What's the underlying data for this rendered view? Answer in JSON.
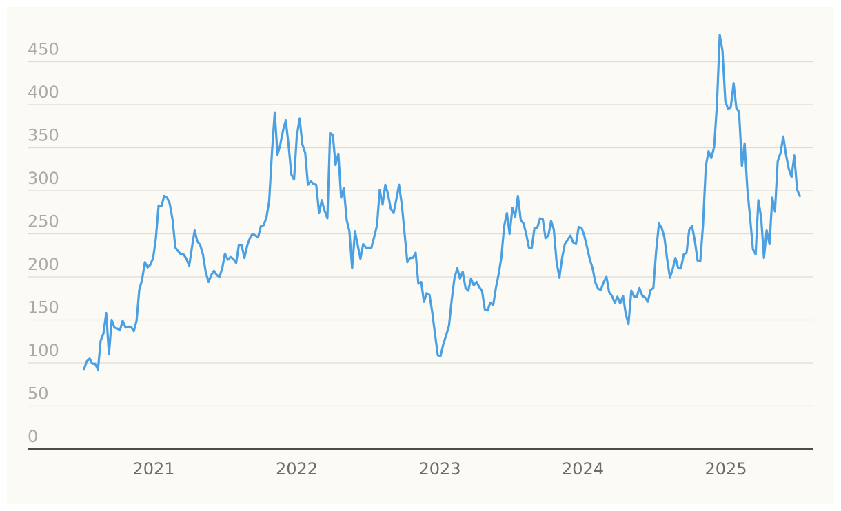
{
  "chart_data": {
    "type": "line",
    "x": [
      2020.513,
      2020.532,
      2020.552,
      2020.571,
      2020.59,
      2020.61,
      2020.629,
      2020.648,
      2020.668,
      2020.687,
      2020.706,
      2020.725,
      2020.745,
      2020.764,
      2020.783,
      2020.803,
      2020.822,
      2020.841,
      2020.861,
      2020.88,
      2020.899,
      2020.918,
      2020.938,
      2020.957,
      2020.976,
      2020.996,
      2021.015,
      2021.034,
      2021.054,
      2021.073,
      2021.093,
      2021.112,
      2021.132,
      2021.151,
      2021.17,
      2021.19,
      2021.209,
      2021.228,
      2021.248,
      2021.267,
      2021.286,
      2021.305,
      2021.325,
      2021.344,
      2021.363,
      2021.383,
      2021.402,
      2021.421,
      2021.441,
      2021.46,
      2021.479,
      2021.498,
      2021.518,
      2021.537,
      2021.556,
      2021.576,
      2021.595,
      2021.614,
      2021.634,
      2021.653,
      2021.672,
      2021.691,
      2021.711,
      2021.73,
      2021.749,
      2021.769,
      2021.788,
      2021.807,
      2021.827,
      2021.846,
      2021.865,
      2021.884,
      2021.904,
      2021.923,
      2021.942,
      2021.962,
      2021.981,
      2022.0,
      2022.02,
      2022.039,
      2022.059,
      2022.078,
      2022.098,
      2022.117,
      2022.136,
      2022.156,
      2022.175,
      2022.194,
      2022.214,
      2022.233,
      2022.252,
      2022.271,
      2022.291,
      2022.31,
      2022.329,
      2022.349,
      2022.368,
      2022.387,
      2022.407,
      2022.426,
      2022.445,
      2022.464,
      2022.484,
      2022.503,
      2022.522,
      2022.542,
      2022.561,
      2022.58,
      2022.6,
      2022.619,
      2022.638,
      2022.657,
      2022.677,
      2022.696,
      2022.715,
      2022.735,
      2022.754,
      2022.773,
      2022.793,
      2022.812,
      2022.831,
      2022.85,
      2022.87,
      2022.889,
      2022.908,
      2022.928,
      2022.947,
      2022.966,
      2022.986,
      2023.005,
      2023.025,
      2023.044,
      2023.064,
      2023.083,
      2023.102,
      2023.122,
      2023.141,
      2023.16,
      2023.18,
      2023.199,
      2023.218,
      2023.237,
      2023.257,
      2023.276,
      2023.295,
      2023.315,
      2023.334,
      2023.353,
      2023.373,
      2023.392,
      2023.411,
      2023.43,
      2023.45,
      2023.469,
      2023.488,
      2023.508,
      2023.527,
      2023.546,
      2023.566,
      2023.585,
      2023.604,
      2023.623,
      2023.643,
      2023.662,
      2023.681,
      2023.701,
      2023.72,
      2023.739,
      2023.759,
      2023.778,
      2023.797,
      2023.816,
      2023.836,
      2023.855,
      2023.874,
      2023.894,
      2023.913,
      2023.932,
      2023.952,
      2023.971,
      2023.991,
      2024.01,
      2024.03,
      2024.049,
      2024.068,
      2024.088,
      2024.107,
      2024.126,
      2024.146,
      2024.165,
      2024.184,
      2024.203,
      2024.223,
      2024.242,
      2024.261,
      2024.281,
      2024.3,
      2024.319,
      2024.339,
      2024.358,
      2024.377,
      2024.396,
      2024.416,
      2024.435,
      2024.454,
      2024.474,
      2024.493,
      2024.512,
      2024.532,
      2024.551,
      2024.57,
      2024.589,
      2024.609,
      2024.628,
      2024.647,
      2024.667,
      2024.686,
      2024.705,
      2024.725,
      2024.744,
      2024.763,
      2024.782,
      2024.802,
      2024.821,
      2024.84,
      2024.86,
      2024.879,
      2024.898,
      2024.918,
      2024.937,
      2024.957,
      2024.976,
      2024.996,
      2025.015,
      2025.034,
      2025.054,
      2025.073,
      2025.092,
      2025.112,
      2025.131,
      2025.15,
      2025.169,
      2025.189,
      2025.208,
      2025.227,
      2025.247,
      2025.266,
      2025.285,
      2025.305,
      2025.324,
      2025.343,
      2025.362,
      2025.382,
      2025.401,
      2025.42,
      2025.44,
      2025.459,
      2025.478,
      2025.498,
      2025.517
    ],
    "values": [
      93,
      102,
      105,
      99,
      99,
      92,
      126,
      134,
      158,
      110,
      150,
      141,
      140,
      138,
      149,
      141,
      142,
      142,
      137,
      149,
      185,
      196,
      217,
      211,
      214,
      222,
      245,
      283,
      282,
      294,
      292,
      285,
      266,
      234,
      230,
      226,
      226,
      221,
      213,
      234,
      254,
      241,
      237,
      226,
      206,
      194,
      202,
      207,
      202,
      200,
      210,
      227,
      220,
      223,
      221,
      216,
      237,
      237,
      222,
      236,
      245,
      250,
      248,
      246,
      259,
      260,
      269,
      288,
      346,
      391,
      342,
      353,
      370,
      382,
      354,
      319,
      313,
      363,
      384,
      354,
      344,
      307,
      311,
      308,
      307,
      274,
      289,
      277,
      268,
      367,
      365,
      330,
      343,
      292,
      303,
      266,
      253,
      210,
      253,
      237,
      221,
      238,
      234,
      234,
      234,
      247,
      260,
      301,
      284,
      307,
      296,
      279,
      274,
      290,
      307,
      283,
      250,
      217,
      222,
      222,
      228,
      192,
      194,
      171,
      181,
      179,
      159,
      134,
      109,
      108,
      122,
      132,
      143,
      173,
      198,
      210,
      198,
      206,
      187,
      184,
      198,
      190,
      194,
      188,
      184,
      162,
      161,
      170,
      167,
      187,
      203,
      222,
      259,
      274,
      250,
      280,
      270,
      294,
      266,
      262,
      250,
      234,
      234,
      257,
      257,
      268,
      267,
      245,
      248,
      265,
      255,
      218,
      199,
      222,
      238,
      243,
      248,
      240,
      238,
      258,
      257,
      248,
      234,
      220,
      210,
      193,
      186,
      185,
      194,
      200,
      182,
      178,
      170,
      177,
      169,
      178,
      157,
      145,
      184,
      177,
      177,
      187,
      178,
      176,
      171,
      185,
      187,
      229,
      262,
      257,
      246,
      221,
      199,
      209,
      222,
      210,
      210,
      226,
      228,
      255,
      259,
      243,
      219,
      218,
      260,
      329,
      346,
      338,
      351,
      399,
      481,
      463,
      404,
      395,
      397,
      425,
      396,
      392,
      329,
      355,
      302,
      269,
      232,
      226,
      289,
      268,
      222,
      254,
      238,
      292,
      276,
      334,
      344,
      363,
      342,
      325,
      316,
      341,
      301,
      294
    ],
    "color": "#4aa0e2",
    "xlim": [
      2020.118,
      2025.612
    ],
    "xticks": [
      2021,
      2022,
      2023,
      2024,
      2025
    ],
    "ylim": [
      0,
      500
    ],
    "yticks": [
      0,
      50,
      100,
      150,
      200,
      250,
      300,
      350,
      400,
      450
    ],
    "grid": true
  }
}
